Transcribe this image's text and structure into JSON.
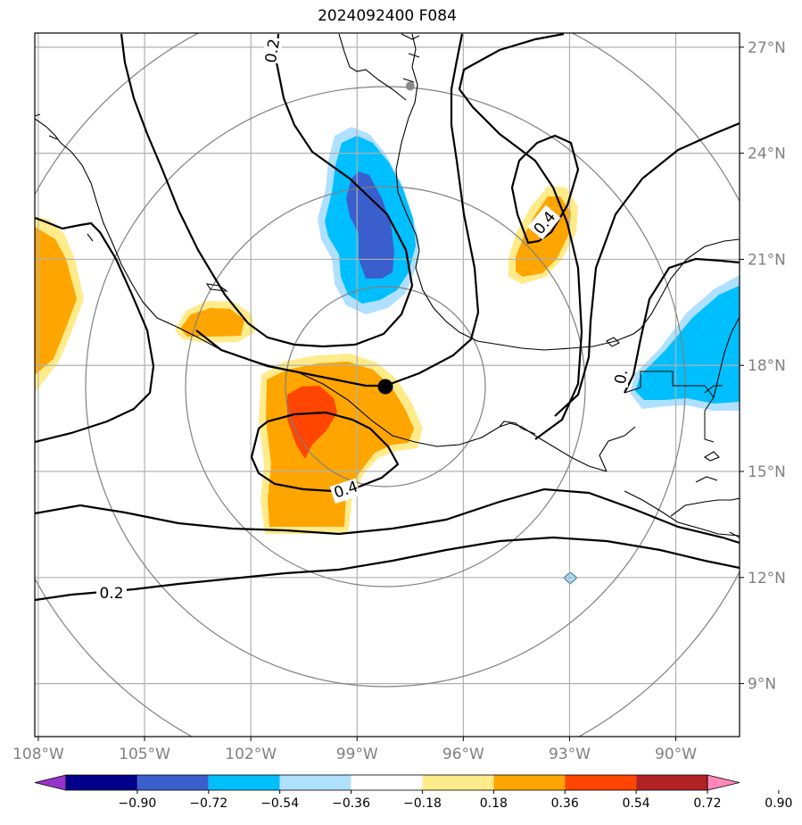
{
  "title": "2024092400 F084",
  "map": {
    "lon_range": [
      -108.1,
      -88.2
    ],
    "lat_range": [
      7.5,
      27.4
    ],
    "lon_ticks": [
      {
        "value": -108,
        "label": "108°W"
      },
      {
        "value": -105,
        "label": "105°W"
      },
      {
        "value": -102,
        "label": "102°W"
      },
      {
        "value": -99,
        "label": "99°W"
      },
      {
        "value": -96,
        "label": "96°W"
      },
      {
        "value": -93,
        "label": "93°W"
      },
      {
        "value": -90,
        "label": "90°W"
      }
    ],
    "lat_ticks": [
      {
        "value": 27,
        "label": "27°N"
      },
      {
        "value": 24,
        "label": "24°N"
      },
      {
        "value": 21,
        "label": "21°N"
      },
      {
        "value": 18,
        "label": "18°N"
      },
      {
        "value": 15,
        "label": "15°N"
      },
      {
        "value": 12,
        "label": "12°N"
      },
      {
        "value": 9,
        "label": "9°N"
      }
    ],
    "center_marker": {
      "lon": -98.2,
      "lat": 17.4
    },
    "station_marker": {
      "lon": -97.5,
      "lat": 25.9
    },
    "range_ring_count": 4
  },
  "contour_labels": [
    {
      "text": "0.2"
    },
    {
      "text": "0.4"
    },
    {
      "text": "0.4"
    },
    {
      "text": "0.2"
    },
    {
      "text": "0."
    }
  ],
  "colorbar": {
    "ticks": [
      "−0.90",
      "−0.72",
      "−0.54",
      "−0.36",
      "−0.18",
      "0.18",
      "0.36",
      "0.54",
      "0.72",
      "0.90"
    ],
    "colors": [
      "#9932cc",
      "#00008b",
      "#3a5fcd",
      "#00bfff",
      "#b0e0ff",
      "#ffffff",
      "#ffeb8a",
      "#ffa500",
      "#ff4500",
      "#b22222",
      "#ff88b8"
    ]
  }
}
